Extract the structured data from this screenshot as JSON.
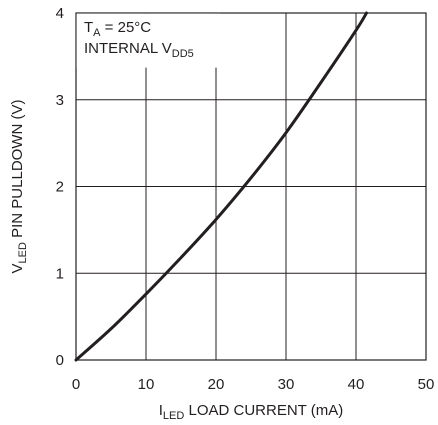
{
  "chart_data": {
    "type": "line",
    "xlabel": {
      "main": "I",
      "sub": "LED",
      "rest": " LOAD CURRENT (mA)"
    },
    "ylabel": {
      "main": "V",
      "sub": "LED",
      "rest": " PIN PULLDOWN (V)"
    },
    "xlim": [
      0,
      50
    ],
    "ylim": [
      0,
      4
    ],
    "x_ticks": [
      "0",
      "10",
      "20",
      "30",
      "40",
      "50"
    ],
    "y_ticks": [
      "0",
      "1",
      "2",
      "3",
      "4"
    ],
    "grid": true,
    "annotations": [
      {
        "main": "T",
        "sub": "A",
        "rest": " = 25°C"
      },
      {
        "main": "INTERNAL V",
        "sub": "DD5",
        "rest": ""
      }
    ],
    "series": [
      {
        "color": "#231f20",
        "x": [
          0,
          5,
          10,
          15,
          20,
          25,
          30,
          35,
          40,
          41.5
        ],
        "y": [
          0,
          0.36,
          0.76,
          1.18,
          1.62,
          2.1,
          2.62,
          3.2,
          3.8,
          4.0
        ]
      }
    ]
  }
}
